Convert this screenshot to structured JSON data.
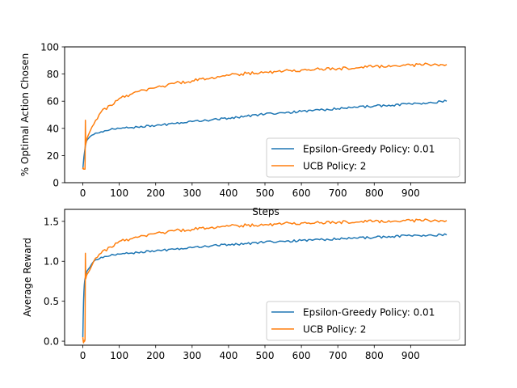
{
  "chart_data": [
    {
      "type": "line",
      "title": "",
      "xlabel": "Steps",
      "ylabel": "% Optimal Action Chosen",
      "xlim": [
        -50,
        1050
      ],
      "ylim": [
        0,
        100
      ],
      "xticks": [
        "0",
        "100",
        "200",
        "300",
        "400",
        "500",
        "600",
        "700",
        "800",
        "900"
      ],
      "yticks": [
        "0",
        "20",
        "40",
        "60",
        "80",
        "100"
      ],
      "grid": false,
      "legend_position": "lower-right",
      "x": [
        0,
        1,
        2,
        3,
        4,
        5,
        6,
        7,
        8,
        9,
        10,
        12,
        15,
        20,
        25,
        30,
        40,
        50,
        75,
        100,
        150,
        200,
        250,
        300,
        350,
        400,
        450,
        500,
        550,
        600,
        650,
        700,
        750,
        800,
        850,
        900,
        950,
        999
      ],
      "series": [
        {
          "name": "Epsilon-Greedy Policy: 0.01",
          "color": "#1f77b4",
          "values": [
            10,
            13,
            16,
            19,
            21,
            23,
            25,
            27,
            28.5,
            29.5,
            30.5,
            31.5,
            32.5,
            34,
            35,
            35.5,
            36.5,
            37.5,
            39,
            40,
            41,
            42,
            43.5,
            45,
            46,
            47.5,
            49,
            50.5,
            51.5,
            52.5,
            53.5,
            54.5,
            55.5,
            56.5,
            57,
            58,
            59,
            60
          ]
        },
        {
          "name": "UCB Policy: 2",
          "color": "#ff7f0e",
          "values": [
            10,
            11,
            10,
            10,
            10,
            10,
            10,
            46,
            28,
            30,
            31,
            33,
            35,
            38,
            41,
            43,
            47,
            52,
            57,
            62,
            67,
            70,
            73,
            75,
            77,
            79,
            80.5,
            81.5,
            82,
            83,
            83.5,
            84,
            84.5,
            85.5,
            86,
            86.5,
            87,
            87
          ]
        }
      ]
    },
    {
      "type": "line",
      "title": "",
      "xlabel": "",
      "ylabel": "Average Reward",
      "xlim": [
        -50,
        1050
      ],
      "ylim": [
        -0.05,
        1.65
      ],
      "xticks": [
        "0",
        "100",
        "200",
        "300",
        "400",
        "500",
        "600",
        "700",
        "800",
        "900"
      ],
      "yticks": [
        "0.0",
        "0.5",
        "1.0",
        "1.5"
      ],
      "grid": false,
      "legend_position": "lower-right",
      "x": [
        0,
        1,
        2,
        3,
        4,
        5,
        6,
        7,
        8,
        9,
        10,
        12,
        15,
        20,
        25,
        30,
        40,
        50,
        75,
        100,
        150,
        200,
        250,
        300,
        350,
        400,
        450,
        500,
        550,
        600,
        650,
        700,
        750,
        800,
        850,
        900,
        950,
        999
      ],
      "series": [
        {
          "name": "Epsilon-Greedy Policy: 0.01",
          "color": "#1f77b4",
          "values": [
            0.05,
            0.3,
            0.5,
            0.62,
            0.7,
            0.75,
            0.78,
            0.8,
            0.82,
            0.84,
            0.86,
            0.88,
            0.9,
            0.93,
            0.97,
            1.0,
            1.02,
            1.05,
            1.07,
            1.09,
            1.11,
            1.13,
            1.15,
            1.17,
            1.19,
            1.21,
            1.22,
            1.24,
            1.25,
            1.26,
            1.27,
            1.28,
            1.29,
            1.3,
            1.31,
            1.32,
            1.33,
            1.33
          ]
        },
        {
          "name": "UCB Policy: 2",
          "color": "#ff7f0e",
          "values": [
            0.05,
            0.0,
            -0.02,
            0.0,
            0.01,
            0.0,
            0.02,
            1.1,
            0.78,
            0.8,
            0.82,
            0.84,
            0.86,
            0.9,
            0.95,
            1.0,
            1.05,
            1.1,
            1.18,
            1.25,
            1.3,
            1.35,
            1.38,
            1.4,
            1.42,
            1.44,
            1.45,
            1.46,
            1.47,
            1.48,
            1.48,
            1.49,
            1.49,
            1.5,
            1.5,
            1.51,
            1.51,
            1.51
          ]
        }
      ]
    }
  ]
}
